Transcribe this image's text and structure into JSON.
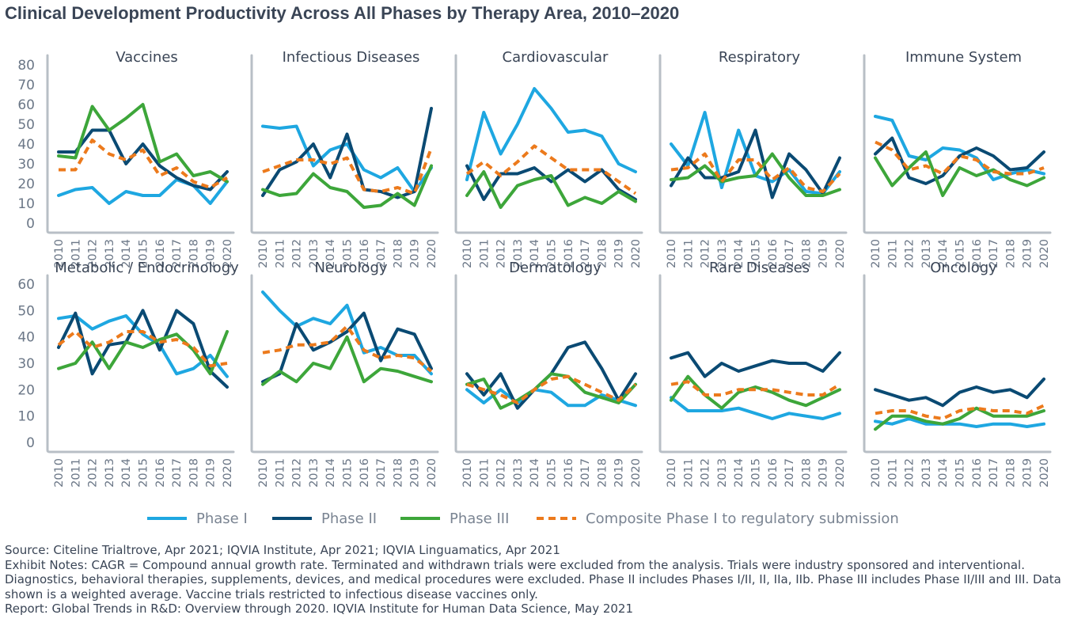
{
  "title": "Clinical Development Productivity Across All Phases by Therapy Area, 2010–2020",
  "colors": {
    "phase1": "#1ea7e1",
    "phase2": "#0a4a73",
    "phase3": "#3da63a",
    "composite": "#ec7a1c",
    "axis": "#b8bfc6"
  },
  "chart_data": {
    "type": "line",
    "x": [
      "2010",
      "2011",
      "2012",
      "2013",
      "2014",
      "2015",
      "2016",
      "2017",
      "2018",
      "2019",
      "2020"
    ],
    "rows": [
      {
        "yticks": [
          "0",
          "10",
          "20",
          "30",
          "40",
          "50",
          "60",
          "70",
          "80"
        ],
        "ylim": [
          0,
          80
        ]
      },
      {
        "yticks": [
          "0",
          "10",
          "20",
          "30",
          "40",
          "50",
          "60"
        ],
        "ylim": [
          0,
          60
        ]
      }
    ],
    "legend": [
      "Phase I",
      "Phase II",
      "Phase III",
      "Composite Phase I to regulatory submission"
    ],
    "panels": [
      {
        "title": "Vaccines",
        "row": 0,
        "series": {
          "p1": [
            14,
            17,
            18,
            10,
            16,
            14,
            14,
            22,
            19,
            10,
            21
          ],
          "p2": [
            36,
            36,
            47,
            47,
            30,
            40,
            29,
            23,
            19,
            17,
            26
          ],
          "p3": [
            34,
            33,
            59,
            47,
            53,
            60,
            31,
            35,
            24,
            26,
            21
          ],
          "c": [
            27,
            27,
            42,
            35,
            32,
            37,
            24,
            28,
            21,
            18,
            23
          ]
        }
      },
      {
        "title": "Infectious Diseases",
        "row": 0,
        "series": {
          "p1": [
            49,
            48,
            49,
            29,
            37,
            40,
            27,
            23,
            28,
            16,
            28
          ],
          "p2": [
            14,
            27,
            31,
            40,
            23,
            45,
            17,
            16,
            13,
            16,
            58
          ],
          "p3": [
            17,
            14,
            15,
            25,
            18,
            16,
            8,
            9,
            15,
            9,
            29
          ],
          "c": [
            26,
            29,
            32,
            32,
            30,
            33,
            17,
            16,
            18,
            15,
            38
          ]
        }
      },
      {
        "title": "Cardiovascular",
        "row": 0,
        "series": {
          "p1": [
            22,
            56,
            35,
            50,
            68,
            58,
            46,
            47,
            44,
            30,
            26
          ],
          "p2": [
            29,
            12,
            25,
            25,
            28,
            21,
            27,
            21,
            27,
            17,
            12
          ],
          "p3": [
            14,
            26,
            8,
            19,
            22,
            24,
            9,
            13,
            10,
            16,
            11
          ],
          "c": [
            25,
            31,
            24,
            31,
            39,
            33,
            27,
            27,
            27,
            21,
            15
          ]
        }
      },
      {
        "title": "Respiratory",
        "row": 0,
        "series": {
          "p1": [
            40,
            29,
            56,
            18,
            47,
            24,
            21,
            27,
            16,
            15,
            26
          ],
          "p2": [
            19,
            33,
            23,
            23,
            26,
            47,
            13,
            35,
            27,
            15,
            33
          ],
          "p3": [
            22,
            23,
            29,
            21,
            23,
            24,
            35,
            23,
            14,
            14,
            17
          ],
          "c": [
            27,
            28,
            35,
            21,
            32,
            32,
            22,
            28,
            18,
            16,
            25
          ]
        }
      },
      {
        "title": "Immune System",
        "row": 0,
        "series": {
          "p1": [
            54,
            52,
            34,
            32,
            38,
            37,
            33,
            22,
            25,
            27,
            25
          ],
          "p2": [
            35,
            43,
            23,
            20,
            24,
            34,
            38,
            34,
            27,
            28,
            36
          ],
          "p3": [
            33,
            19,
            28,
            36,
            14,
            28,
            24,
            27,
            22,
            19,
            23
          ],
          "c": [
            41,
            37,
            27,
            29,
            25,
            34,
            32,
            26,
            25,
            25,
            28
          ]
        }
      },
      {
        "title": "Metabolic / Endocrinology",
        "row": 1,
        "series": {
          "p1": [
            47,
            48,
            43,
            46,
            48,
            41,
            37,
            26,
            28,
            33,
            25
          ],
          "p2": [
            36,
            49,
            26,
            37,
            38,
            50,
            35,
            50,
            45,
            27,
            21
          ],
          "p3": [
            28,
            30,
            38,
            28,
            38,
            36,
            39,
            41,
            35,
            26,
            42
          ],
          "c": [
            37,
            42,
            36,
            38,
            42,
            42,
            38,
            39,
            36,
            29,
            30
          ]
        }
      },
      {
        "title": "Neurology",
        "row": 1,
        "series": {
          "p1": [
            57,
            50,
            44,
            47,
            45,
            52,
            34,
            36,
            33,
            33,
            26
          ],
          "p2": [
            23,
            26,
            45,
            35,
            38,
            42,
            49,
            31,
            43,
            41,
            28
          ],
          "p3": [
            22,
            27,
            23,
            30,
            28,
            40,
            23,
            28,
            27,
            25,
            23
          ],
          "c": [
            34,
            35,
            37,
            37,
            38,
            44,
            35,
            32,
            33,
            32,
            27
          ]
        }
      },
      {
        "title": "Dermatology",
        "row": 1,
        "series": {
          "p1": [
            20,
            15,
            20,
            15,
            20,
            19,
            14,
            14,
            18,
            16,
            14
          ],
          "p2": [
            26,
            18,
            26,
            13,
            20,
            26,
            36,
            38,
            28,
            16,
            26
          ],
          "p3": [
            22,
            24,
            13,
            16,
            20,
            26,
            25,
            19,
            17,
            15,
            22
          ],
          "c": [
            22,
            20,
            18,
            15,
            20,
            24,
            25,
            22,
            19,
            16,
            22
          ]
        }
      },
      {
        "title": "Rare Diseases",
        "row": 1,
        "series": {
          "p1": [
            17,
            12,
            12,
            12,
            13,
            11,
            9,
            11,
            10,
            9,
            11
          ],
          "p2": [
            32,
            34,
            25,
            30,
            27,
            29,
            31,
            30,
            30,
            27,
            34
          ],
          "p3": [
            16,
            25,
            18,
            13,
            19,
            21,
            19,
            16,
            14,
            17,
            20
          ],
          "c": [
            22,
            23,
            18,
            18,
            20,
            20,
            20,
            19,
            18,
            18,
            22
          ]
        }
      },
      {
        "title": "Oncology",
        "row": 1,
        "series": {
          "p1": [
            8,
            7,
            9,
            7,
            7,
            7,
            6,
            7,
            7,
            6,
            7
          ],
          "p2": [
            20,
            18,
            16,
            17,
            14,
            19,
            21,
            19,
            20,
            17,
            24
          ],
          "p3": [
            5,
            10,
            10,
            8,
            7,
            9,
            13,
            10,
            10,
            10,
            12
          ],
          "c": [
            11,
            12,
            12,
            10,
            9,
            12,
            13,
            12,
            12,
            11,
            14
          ]
        }
      }
    ]
  },
  "notes": {
    "source": "Source: Citeline Trialtrove, Apr 2021; IQVIA Institute, Apr 2021; IQVIA Linguamatics, Apr 2021",
    "exhibit": "Exhibit Notes: CAGR = Compound annual growth rate. Terminated and withdrawn trials were excluded from the analysis. Trials were industry sponsored and interventional. Diagnostics, behavioral therapies, supplements, devices, and medical procedures were excluded. Phase II includes Phases I/II, II, IIa, IIb. Phase III includes Phase II/III and III. Data shown is a weighted average. Vaccine trials restricted to infectious disease vaccines only.",
    "report": "Report: Global Trends in R&D: Overview through 2020. IQVIA Institute for Human Data Science, May 2021"
  }
}
